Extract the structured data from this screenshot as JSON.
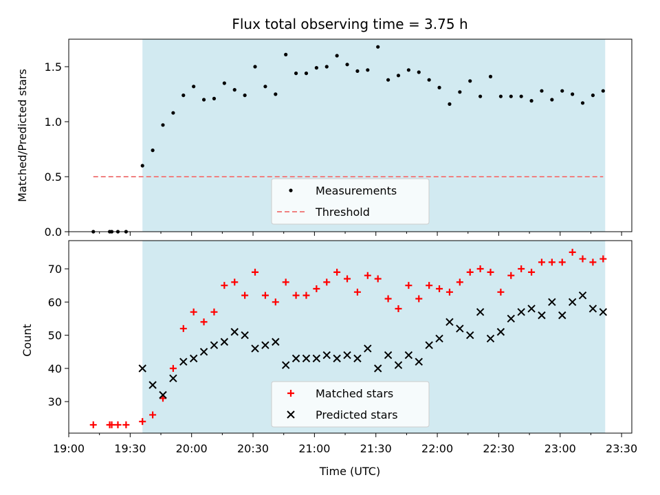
{
  "chart_data": [
    {
      "type": "scatter",
      "title": "Flux total observing time = 3.75 h",
      "xlabel": "",
      "ylabel": "Matched/Predicted stars",
      "ylim": [
        0,
        1.75
      ],
      "yticks": [
        "0.0",
        "0.5",
        "1.0",
        "1.5"
      ],
      "ytick_values": [
        0,
        0.5,
        1.0,
        1.5
      ],
      "shaded_interval": [
        "19:36",
        "23:22"
      ],
      "shade_color": "#add8e6",
      "legend": {
        "placement": "lower center",
        "entries": [
          "Measurements",
          "Threshold"
        ]
      },
      "series": [
        {
          "name": "Measurements",
          "marker": "dot",
          "color": "#000000",
          "x": [
            "19:12",
            "19:20",
            "19:21",
            "19:24",
            "19:28",
            "19:36",
            "19:41",
            "19:46",
            "19:51",
            "19:56",
            "20:01",
            "20:06",
            "20:11",
            "20:16",
            "20:21",
            "20:26",
            "20:31",
            "20:36",
            "20:41",
            "20:46",
            "20:51",
            "20:56",
            "21:01",
            "21:06",
            "21:11",
            "21:16",
            "21:21",
            "21:26",
            "21:31",
            "21:36",
            "21:41",
            "21:46",
            "21:51",
            "21:56",
            "22:01",
            "22:06",
            "22:11",
            "22:16",
            "22:21",
            "22:26",
            "22:31",
            "22:36",
            "22:41",
            "22:46",
            "22:51",
            "22:56",
            "23:01",
            "23:06",
            "23:11",
            "23:16",
            "23:21"
          ],
          "y": [
            0,
            0,
            0,
            0,
            0,
            0.6,
            0.74,
            0.97,
            1.08,
            1.24,
            1.32,
            1.2,
            1.21,
            1.35,
            1.29,
            1.24,
            1.5,
            1.32,
            1.25,
            1.61,
            1.44,
            1.44,
            1.49,
            1.5,
            1.6,
            1.52,
            1.46,
            1.47,
            1.68,
            1.38,
            1.42,
            1.47,
            1.45,
            1.38,
            1.31,
            1.16,
            1.27,
            1.37,
            1.23,
            1.41,
            1.23,
            1.23,
            1.23,
            1.19,
            1.28,
            1.2,
            1.28,
            1.25,
            1.17,
            1.24,
            1.28
          ]
        },
        {
          "name": "Threshold",
          "style": "dashed",
          "color": "#f08080",
          "x": [
            "19:12",
            "23:21"
          ],
          "y": [
            0.5,
            0.5
          ]
        }
      ]
    },
    {
      "type": "scatter",
      "title": "",
      "xlabel": "Time (UTC)",
      "ylabel": "Count",
      "ylim": [
        20.5,
        78.5
      ],
      "yticks": [
        "30",
        "40",
        "50",
        "60",
        "70"
      ],
      "ytick_values": [
        30,
        40,
        50,
        60,
        70
      ],
      "xticks": [
        "19:00",
        "19:30",
        "20:00",
        "20:30",
        "21:00",
        "21:30",
        "22:00",
        "22:30",
        "23:00",
        "23:30"
      ],
      "xlim": [
        "19:00",
        "23:35"
      ],
      "shaded_interval": [
        "19:36",
        "23:22"
      ],
      "shade_color": "#add8e6",
      "legend": {
        "placement": "lower center",
        "entries": [
          "Matched stars",
          "Predicted stars"
        ]
      },
      "series": [
        {
          "name": "Matched stars",
          "marker": "plus",
          "color": "#ff0000",
          "x": [
            "19:12",
            "19:20",
            "19:21",
            "19:24",
            "19:28",
            "19:36",
            "19:41",
            "19:46",
            "19:51",
            "19:56",
            "20:01",
            "20:06",
            "20:11",
            "20:16",
            "20:21",
            "20:26",
            "20:31",
            "20:36",
            "20:41",
            "20:46",
            "20:51",
            "20:56",
            "21:01",
            "21:06",
            "21:11",
            "21:16",
            "21:21",
            "21:26",
            "21:31",
            "21:36",
            "21:41",
            "21:46",
            "21:51",
            "21:56",
            "22:01",
            "22:06",
            "22:11",
            "22:16",
            "22:21",
            "22:26",
            "22:31",
            "22:36",
            "22:41",
            "22:46",
            "22:51",
            "22:56",
            "23:01",
            "23:06",
            "23:11",
            "23:16",
            "23:21"
          ],
          "y": [
            23,
            23,
            23,
            23,
            23,
            24,
            26,
            31,
            40,
            52,
            57,
            54,
            57,
            65,
            66,
            62,
            69,
            62,
            60,
            66,
            62,
            62,
            64,
            66,
            69,
            67,
            63,
            68,
            67,
            61,
            58,
            65,
            61,
            65,
            64,
            63,
            66,
            69,
            70,
            69,
            63,
            68,
            70,
            69,
            72,
            72,
            72,
            75,
            73,
            72,
            73
          ]
        },
        {
          "name": "Predicted stars",
          "marker": "x",
          "color": "#000000",
          "x": [
            "19:36",
            "19:41",
            "19:46",
            "19:51",
            "19:56",
            "20:01",
            "20:06",
            "20:11",
            "20:16",
            "20:21",
            "20:26",
            "20:31",
            "20:36",
            "20:41",
            "20:46",
            "20:51",
            "20:56",
            "21:01",
            "21:06",
            "21:11",
            "21:16",
            "21:21",
            "21:26",
            "21:31",
            "21:36",
            "21:41",
            "21:46",
            "21:51",
            "21:56",
            "22:01",
            "22:06",
            "22:11",
            "22:16",
            "22:21",
            "22:26",
            "22:31",
            "22:36",
            "22:41",
            "22:46",
            "22:51",
            "22:56",
            "23:01",
            "23:06",
            "23:11",
            "23:16",
            "23:21"
          ],
          "y": [
            40,
            35,
            32,
            37,
            42,
            43,
            45,
            47,
            48,
            51,
            50,
            46,
            47,
            48,
            41,
            43,
            43,
            43,
            44,
            43,
            44,
            43,
            46,
            40,
            44,
            41,
            44,
            42,
            47,
            49,
            54,
            52,
            50,
            57,
            49,
            51,
            55,
            57,
            58,
            56,
            60,
            56,
            60,
            62,
            58,
            57
          ]
        }
      ]
    }
  ]
}
